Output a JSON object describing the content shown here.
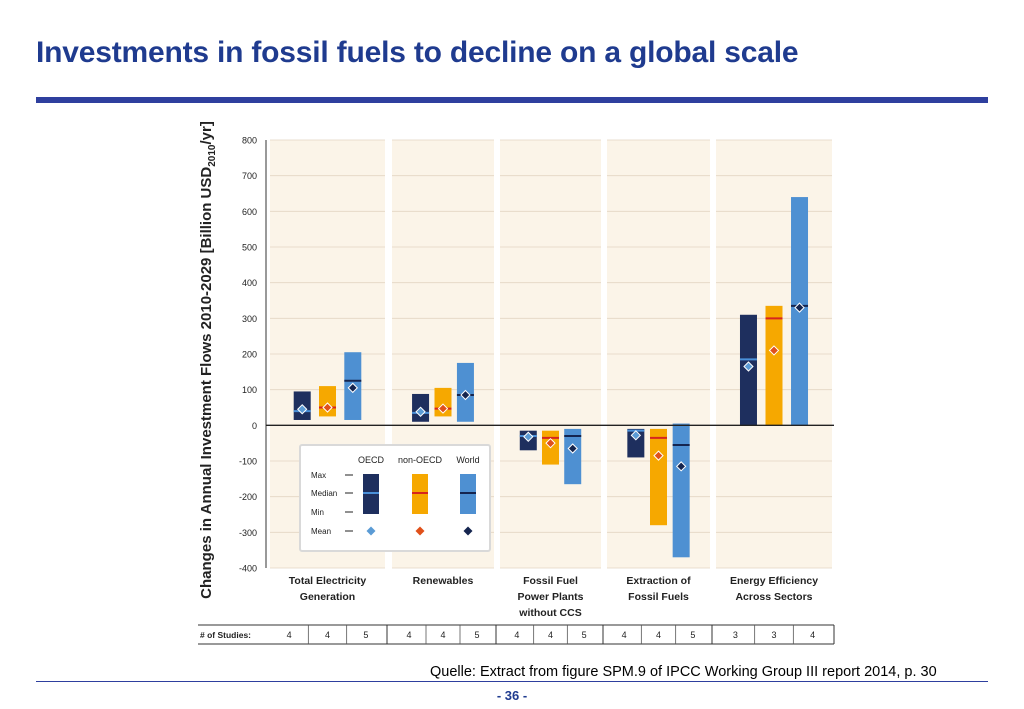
{
  "slide": {
    "title": "Investments in fossil fuels to decline on a global scale",
    "source": "Quelle:  Extract from figure SPM.9 of IPCC Working Group III report 2014, p. 30",
    "page_number": "- 36 -"
  },
  "colors": {
    "title": "#1f3b8f",
    "panel_bg": "#fbf4e8",
    "oecd": "#1e2f5e",
    "oecd_median": "#4a90d9",
    "oecd_mean": "#5b9bd5",
    "non_oecd": "#f6a800",
    "non_oecd_median": "#d6251e",
    "non_oecd_mean": "#e0501a",
    "world": "#4e90d2",
    "world_median": "#15254f",
    "world_mean": "#15254f"
  },
  "chart_data": {
    "type": "bar",
    "subtype": "range",
    "ylabel": "Changes in Annual Investment Flows 2010-2029 [Billion USD",
    "ylabel_sub": "2010",
    "ylabel_suffix": "/yr]",
    "ylim": [
      -400,
      800
    ],
    "yticks": [
      "800",
      "700",
      "600",
      "500",
      "400",
      "300",
      "200",
      "100",
      "0",
      "-100",
      "-200",
      "-300",
      "-400"
    ],
    "ytick_values": [
      800,
      700,
      600,
      500,
      400,
      300,
      200,
      100,
      0,
      -100,
      -200,
      -300,
      -400
    ],
    "studies_label": "# of Studies:",
    "categories": [
      {
        "label": [
          "Total Electricity",
          "Generation"
        ],
        "studies": [
          "4",
          "4",
          "5"
        ]
      },
      {
        "label": [
          "Renewables"
        ],
        "studies": [
          "4",
          "4",
          "5"
        ]
      },
      {
        "label": [
          "Fossil Fuel",
          "Power Plants",
          "without CCS"
        ],
        "studies": [
          "4",
          "4",
          "5"
        ]
      },
      {
        "label": [
          "Extraction of",
          "Fossil Fuels"
        ],
        "studies": [
          "4",
          "4",
          "5"
        ]
      },
      {
        "label": [
          "Energy Efficiency",
          "Across Sectors"
        ],
        "studies": [
          "3",
          "3",
          "4"
        ]
      }
    ],
    "series": [
      {
        "name": "OECD",
        "color_key": "oecd",
        "min": [
          15,
          10,
          -70,
          -90,
          0
        ],
        "max": [
          95,
          88,
          -15,
          -10,
          310
        ],
        "median": [
          40,
          35,
          -30,
          -15,
          185
        ],
        "mean": [
          45,
          38,
          -32,
          -28,
          165
        ]
      },
      {
        "name": "non-OECD",
        "color_key": "non_oecd",
        "min": [
          25,
          25,
          -110,
          -280,
          0
        ],
        "max": [
          110,
          105,
          -15,
          -10,
          335
        ],
        "median": [
          50,
          47,
          -35,
          -35,
          300
        ],
        "mean": [
          50,
          47,
          -50,
          -85,
          210
        ]
      },
      {
        "name": "World",
        "color_key": "world",
        "min": [
          15,
          10,
          -165,
          -370,
          0
        ],
        "max": [
          205,
          175,
          -10,
          5,
          640
        ],
        "median": [
          125,
          85,
          -30,
          -55,
          335
        ],
        "mean": [
          105,
          85,
          -65,
          -115,
          330
        ]
      }
    ],
    "legend": {
      "position": "lower-left",
      "entries": [
        "OECD",
        "non-OECD",
        "World"
      ],
      "row_labels": [
        "Max",
        "Median",
        "Min",
        "Mean"
      ]
    }
  }
}
